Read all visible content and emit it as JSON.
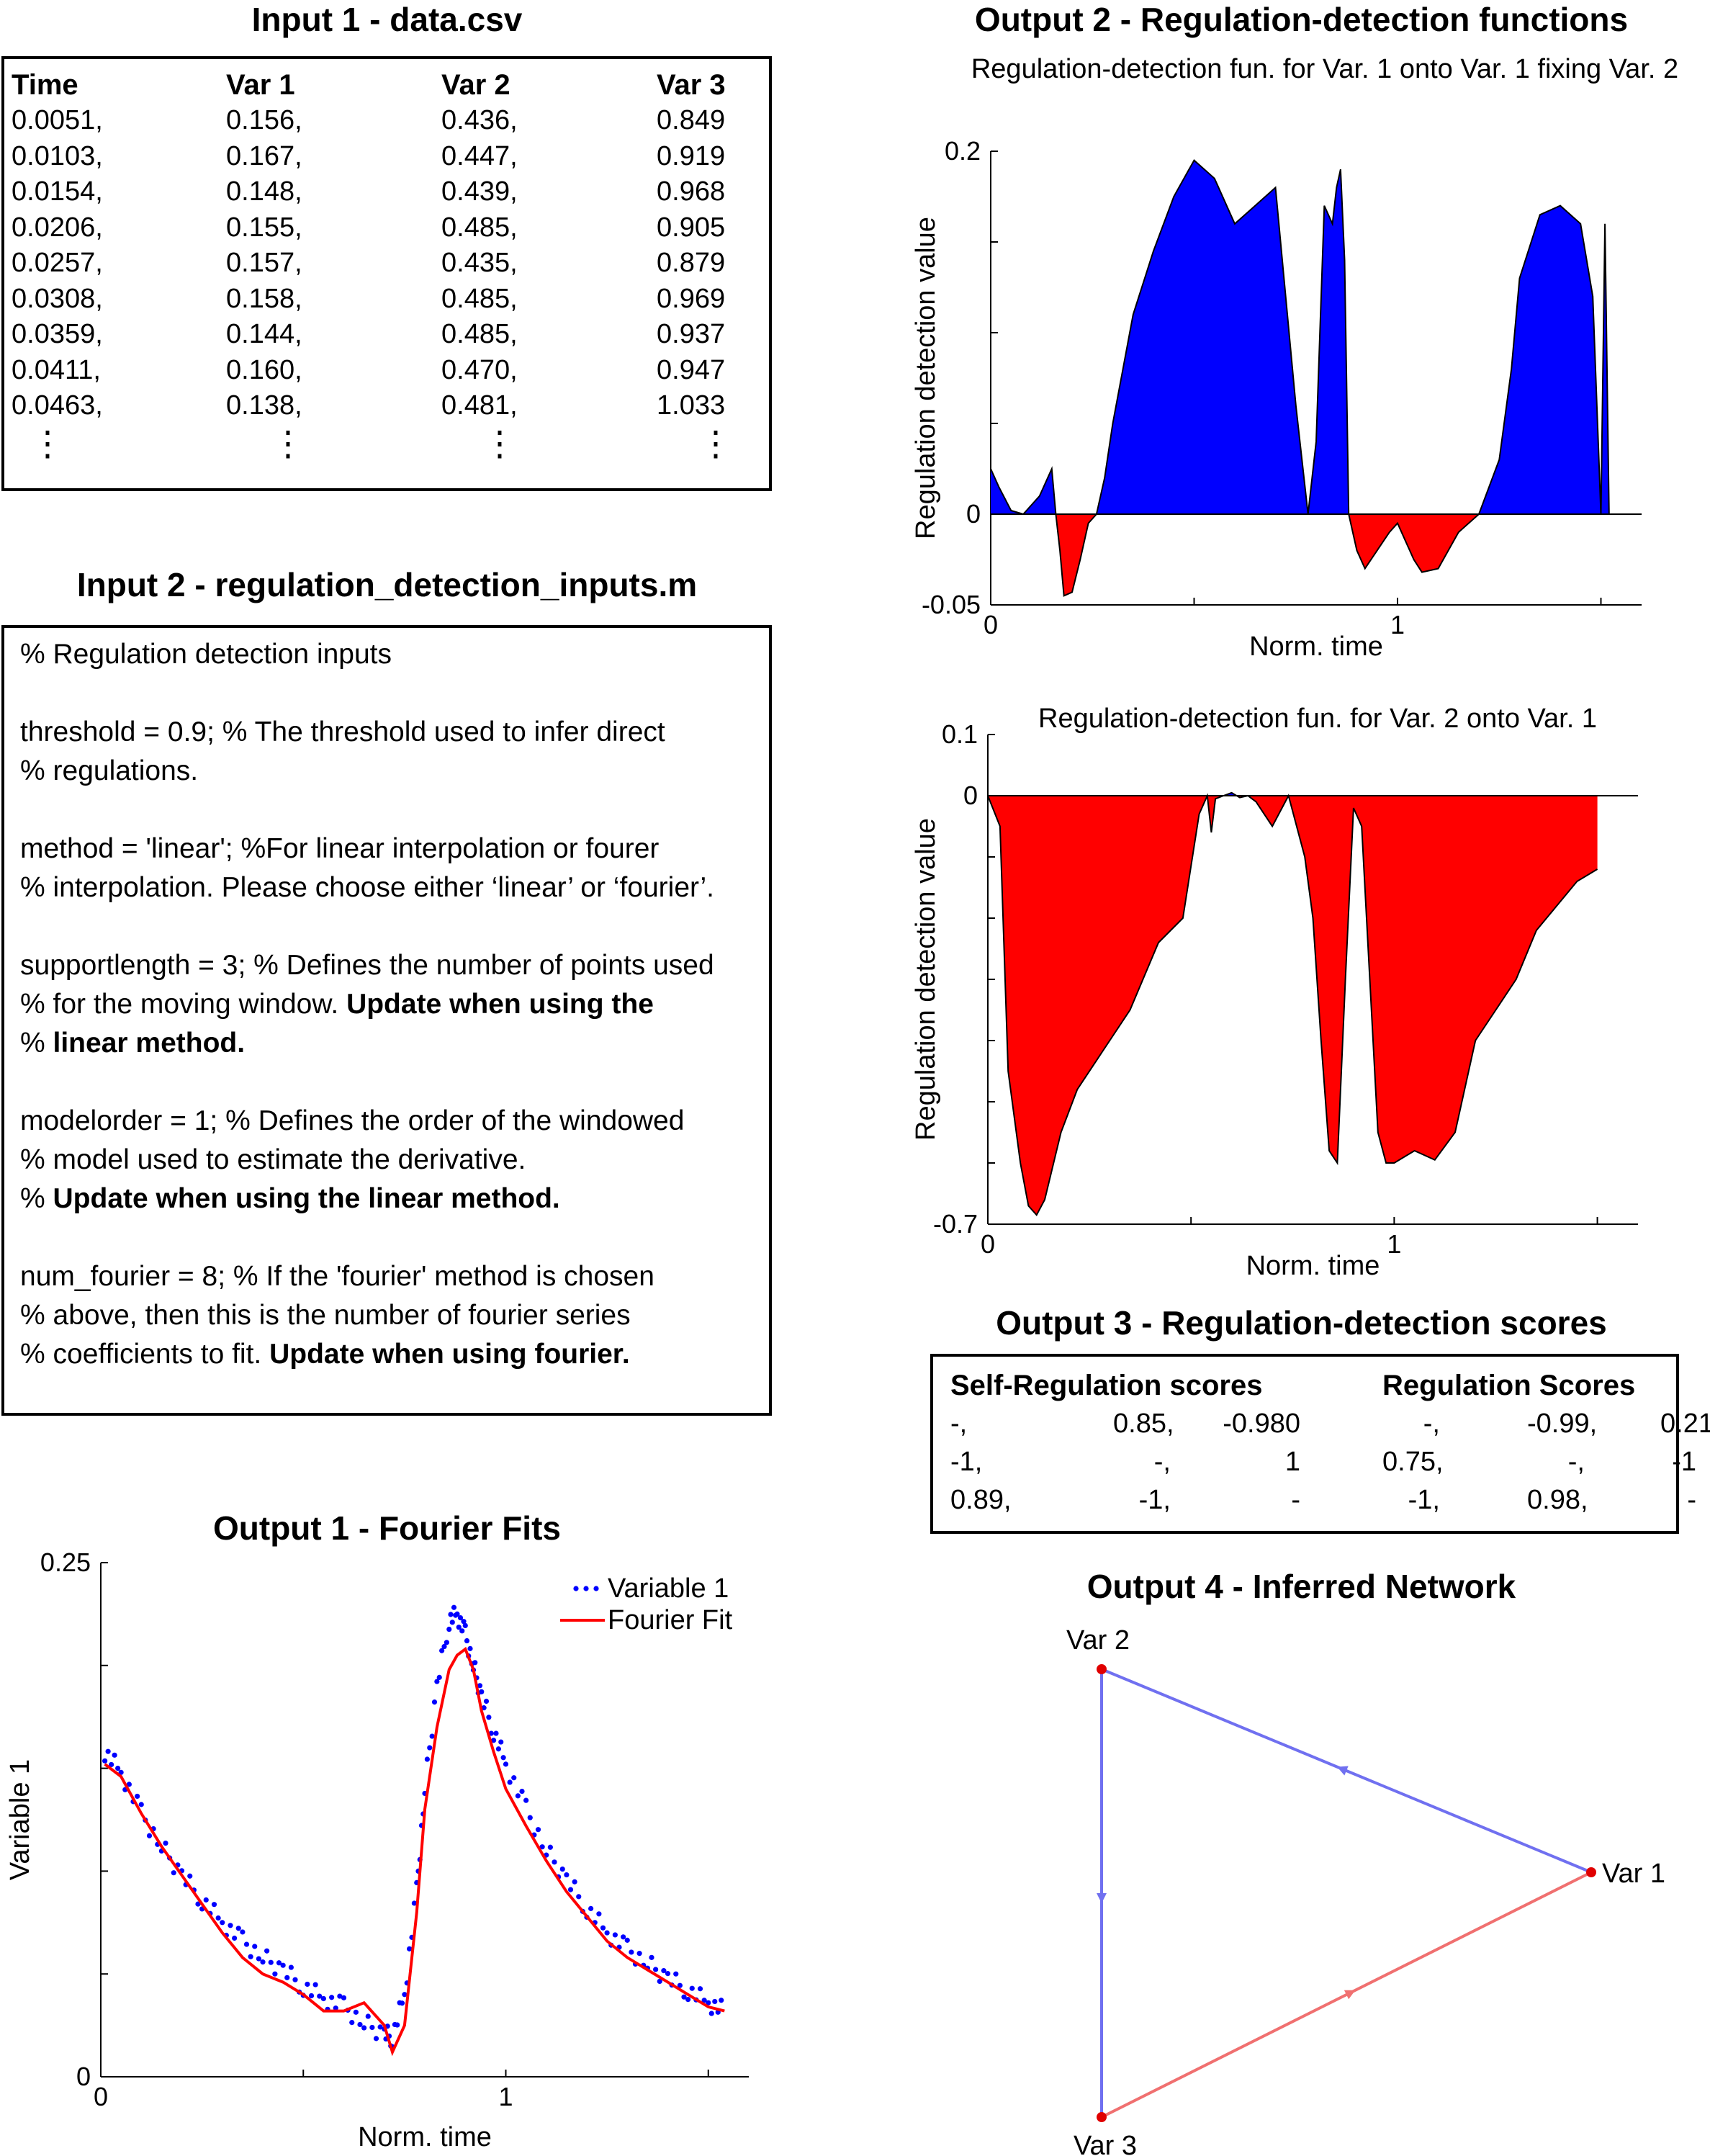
{
  "input1": {
    "title": "Input 1 - data.csv",
    "headers": [
      "Time",
      "Var 1",
      "Var 2",
      "Var 3"
    ],
    "rows": [
      [
        "0.0051,",
        "0.156,",
        "0.436,",
        "0.849"
      ],
      [
        "0.0103,",
        "0.167,",
        "0.447,",
        "0.919"
      ],
      [
        "0.0154,",
        "0.148,",
        "0.439,",
        "0.968"
      ],
      [
        "0.0206,",
        "0.155,",
        "0.485,",
        "0.905"
      ],
      [
        "0.0257,",
        "0.157,",
        "0.435,",
        "0.879"
      ],
      [
        "0.0308,",
        "0.158,",
        "0.485,",
        "0.969"
      ],
      [
        "0.0359,",
        "0.144,",
        "0.485,",
        "0.937"
      ],
      [
        "0.0411,",
        "0.160,",
        "0.470,",
        "0.947"
      ],
      [
        "0.0463,",
        "0.138,",
        "0.481,",
        "1.033"
      ]
    ],
    "ellipsis": "⋮"
  },
  "input2": {
    "title": "Input 2 - regulation_detection_inputs.m",
    "lines": [
      {
        "plain": "% Regulation detection inputs",
        "bold": "",
        "tail": ""
      },
      {
        "plain": "",
        "bold": "",
        "tail": ""
      },
      {
        "plain": "threshold = 0.9; % The threshold used to infer direct",
        "bold": "",
        "tail": ""
      },
      {
        "plain": "% regulations.",
        "bold": "",
        "tail": ""
      },
      {
        "plain": "",
        "bold": "",
        "tail": ""
      },
      {
        "plain": "method = 'linear'; %For linear interpolation or fourer",
        "bold": "",
        "tail": ""
      },
      {
        "plain": "% interpolation.  Please choose either ‘linear’ or ‘fourier’.",
        "bold": "",
        "tail": ""
      },
      {
        "plain": "",
        "bold": "",
        "tail": ""
      },
      {
        "plain": "supportlength = 3; % Defines the number of points used",
        "bold": "",
        "tail": ""
      },
      {
        "plain": "% for the moving window. ",
        "bold": "Update when using the",
        "tail": ""
      },
      {
        "plain": "% ",
        "bold": "linear method.",
        "tail": ""
      },
      {
        "plain": "",
        "bold": "",
        "tail": ""
      },
      {
        "plain": "modelorder = 1; % Defines the order of the windowed",
        "bold": "",
        "tail": ""
      },
      {
        "plain": "% model used to estimate the derivative.",
        "bold": "",
        "tail": ""
      },
      {
        "plain": "% ",
        "bold": "Update when using the linear method.",
        "tail": ""
      },
      {
        "plain": "",
        "bold": "",
        "tail": ""
      },
      {
        "plain": "num_fourier = 8; % If the 'fourier' method is chosen",
        "bold": "",
        "tail": ""
      },
      {
        "plain": "% above, then this is the number of fourier series",
        "bold": "",
        "tail": ""
      },
      {
        "plain": "% coefficients to fit.  ",
        "bold": "Update when using fourier.",
        "tail": ""
      }
    ]
  },
  "output1": {
    "title": "Output 1 - Fourier Fits",
    "legend": [
      "Variable 1",
      "Fourier Fit"
    ],
    "colors": {
      "points": "#0000ff",
      "fit": "#ff0000"
    }
  },
  "output2": {
    "title": "Output 2 - Regulation-detection functions",
    "colors": {
      "positive": "#0000ff",
      "negative": "#ff0000"
    }
  },
  "output3": {
    "title": "Output 3 - Regulation-detection scores",
    "self_header": "Self-Regulation scores",
    "reg_header": "Regulation Scores",
    "self_rows": [
      [
        "-,",
        "0.85,",
        "-0.980"
      ],
      [
        "-1,",
        "-,",
        "1"
      ],
      [
        "0.89,",
        "-1,",
        "-"
      ]
    ],
    "reg_rows": [
      [
        "-,",
        "-0.99,",
        "0.21"
      ],
      [
        "0.75,",
        "-,",
        "-1"
      ],
      [
        "-1,",
        "0.98,",
        "-"
      ]
    ]
  },
  "output4": {
    "title": "Output 4 - Inferred Network",
    "nodes": [
      "Var 1",
      "Var 2",
      "Var 3"
    ],
    "edges": [
      {
        "from": "Var 1",
        "to": "Var 2",
        "color": "#7070f0"
      },
      {
        "from": "Var 2",
        "to": "Var 3",
        "color": "#7070f0"
      },
      {
        "from": "Var 3",
        "to": "Var 1",
        "color": "#f07070"
      }
    ],
    "node_color": "#e00000"
  },
  "chart_data": [
    {
      "type": "scatter",
      "title": "Output 1 - Fourier Fits",
      "xlabel": "Norm. time",
      "ylabel": "Variable 1",
      "xlim": [
        0,
        1.6
      ],
      "ylim": [
        0,
        0.25
      ],
      "xticks": [
        "0",
        "1"
      ],
      "yticks": [
        "0",
        "0.25"
      ],
      "legend_position": "top-right",
      "series": [
        {
          "name": "Variable 1",
          "kind": "points",
          "x": [
            0.01,
            0.05,
            0.1,
            0.15,
            0.2,
            0.25,
            0.3,
            0.35,
            0.4,
            0.45,
            0.5,
            0.55,
            0.6,
            0.65,
            0.7,
            0.72,
            0.75,
            0.78,
            0.8,
            0.83,
            0.86,
            0.88,
            0.9,
            0.92,
            0.94,
            0.97,
            1.0,
            1.05,
            1.1,
            1.15,
            1.2,
            1.25,
            1.3,
            1.35,
            1.4,
            1.45,
            1.5,
            1.54
          ],
          "y": [
            0.158,
            0.148,
            0.128,
            0.112,
            0.098,
            0.086,
            0.075,
            0.066,
            0.058,
            0.052,
            0.044,
            0.038,
            0.034,
            0.026,
            0.021,
            0.019,
            0.04,
            0.09,
            0.14,
            0.19,
            0.222,
            0.225,
            0.215,
            0.2,
            0.185,
            0.168,
            0.152,
            0.13,
            0.11,
            0.096,
            0.082,
            0.07,
            0.062,
            0.055,
            0.048,
            0.042,
            0.036,
            0.032
          ]
        },
        {
          "name": "Fourier Fit",
          "kind": "line",
          "x": [
            0.01,
            0.05,
            0.1,
            0.15,
            0.2,
            0.25,
            0.3,
            0.35,
            0.4,
            0.45,
            0.5,
            0.55,
            0.6,
            0.65,
            0.7,
            0.72,
            0.75,
            0.78,
            0.8,
            0.83,
            0.86,
            0.88,
            0.9,
            0.92,
            0.94,
            0.97,
            1.0,
            1.05,
            1.1,
            1.15,
            1.2,
            1.25,
            1.3,
            1.35,
            1.4,
            1.45,
            1.5,
            1.54
          ],
          "y": [
            0.152,
            0.146,
            0.128,
            0.112,
            0.098,
            0.084,
            0.07,
            0.058,
            0.05,
            0.046,
            0.04,
            0.032,
            0.032,
            0.036,
            0.025,
            0.012,
            0.025,
            0.08,
            0.13,
            0.17,
            0.198,
            0.205,
            0.208,
            0.198,
            0.178,
            0.158,
            0.14,
            0.122,
            0.105,
            0.09,
            0.078,
            0.066,
            0.058,
            0.052,
            0.046,
            0.04,
            0.034,
            0.032
          ]
        }
      ]
    },
    {
      "type": "area",
      "title": "Regulation-detection fun. for Var. 1 onto Var. 1 fixing Var. 2",
      "xlabel": "Norm. time",
      "ylabel": "Regulation detection value",
      "xlim": [
        0,
        1.6
      ],
      "ylim": [
        -0.05,
        0.2
      ],
      "xticks": [
        "0",
        "1"
      ],
      "yticks": [
        "-0.05",
        "0",
        "0.2"
      ],
      "x": [
        0,
        0.02,
        0.05,
        0.08,
        0.12,
        0.15,
        0.16,
        0.17,
        0.18,
        0.2,
        0.22,
        0.24,
        0.26,
        0.28,
        0.3,
        0.35,
        0.4,
        0.45,
        0.5,
        0.55,
        0.6,
        0.65,
        0.7,
        0.75,
        0.78,
        0.8,
        0.82,
        0.84,
        0.85,
        0.86,
        0.87,
        0.88,
        0.9,
        0.92,
        0.95,
        0.98,
        1.0,
        1.02,
        1.04,
        1.06,
        1.1,
        1.15,
        1.2,
        1.25,
        1.28,
        1.3,
        1.35,
        1.4,
        1.45,
        1.48,
        1.5,
        1.51,
        1.52
      ],
      "y": [
        0.025,
        0.015,
        0.002,
        0.0,
        0.01,
        0.025,
        0.0,
        -0.02,
        -0.045,
        -0.043,
        -0.025,
        -0.005,
        0.0,
        0.02,
        0.05,
        0.11,
        0.145,
        0.175,
        0.195,
        0.185,
        0.16,
        0.17,
        0.18,
        0.06,
        0.0,
        0.04,
        0.17,
        0.16,
        0.18,
        0.19,
        0.14,
        0.0,
        -0.02,
        -0.03,
        -0.02,
        -0.01,
        -0.005,
        -0.015,
        -0.025,
        -0.032,
        -0.03,
        -0.01,
        0.0,
        0.03,
        0.08,
        0.13,
        0.165,
        0.17,
        0.16,
        0.12,
        0.0,
        0.16,
        0.0
      ]
    },
    {
      "type": "area",
      "title": "Regulation-detection fun. for Var. 2 onto Var. 1",
      "xlabel": "Norm. time",
      "ylabel": "Regulation detection value",
      "xlim": [
        0,
        1.6
      ],
      "ylim": [
        -0.7,
        0.1
      ],
      "xticks": [
        "0",
        "1"
      ],
      "yticks": [
        "-0.7",
        "0",
        "0.1"
      ],
      "x": [
        0,
        0.03,
        0.05,
        0.08,
        0.1,
        0.12,
        0.14,
        0.18,
        0.22,
        0.28,
        0.35,
        0.42,
        0.48,
        0.52,
        0.54,
        0.55,
        0.56,
        0.58,
        0.6,
        0.62,
        0.64,
        0.66,
        0.7,
        0.74,
        0.78,
        0.8,
        0.82,
        0.84,
        0.86,
        0.88,
        0.9,
        0.92,
        0.94,
        0.96,
        0.98,
        1.0,
        1.05,
        1.1,
        1.15,
        1.2,
        1.25,
        1.3,
        1.35,
        1.4,
        1.45,
        1.5
      ],
      "y": [
        0.0,
        -0.05,
        -0.45,
        -0.6,
        -0.67,
        -0.685,
        -0.66,
        -0.55,
        -0.48,
        -0.42,
        -0.35,
        -0.24,
        -0.2,
        -0.03,
        0.0,
        -0.06,
        -0.005,
        0.0,
        0.005,
        -0.003,
        0.0,
        -0.01,
        -0.05,
        -0.0,
        -0.1,
        -0.2,
        -0.4,
        -0.58,
        -0.6,
        -0.3,
        -0.02,
        -0.05,
        -0.3,
        -0.55,
        -0.6,
        -0.6,
        -0.58,
        -0.595,
        -0.55,
        -0.4,
        -0.35,
        -0.3,
        -0.22,
        -0.18,
        -0.14,
        -0.12
      ]
    }
  ]
}
